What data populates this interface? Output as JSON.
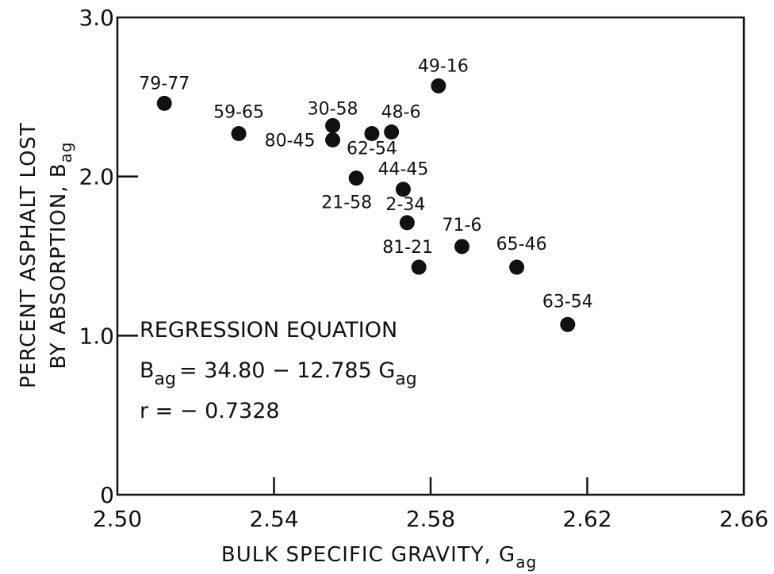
{
  "chart_data": {
    "type": "scatter",
    "xlabel": "BULK SPECIFIC GRAVITY, G",
    "xlabel_sub": "ag",
    "ylabel_line1": "PERCENT ASPHALT LOST",
    "ylabel_line2": "BY ABSORPTION, B",
    "ylabel_sub": "ag",
    "xlim": [
      2.5,
      2.66
    ],
    "ylim": [
      0,
      3.0
    ],
    "x_ticks": [
      2.5,
      2.54,
      2.58,
      2.62,
      2.66
    ],
    "x_tick_labels": [
      "2.50",
      "2.54",
      "2.58",
      "2.62",
      "2.66"
    ],
    "y_ticks": [
      0,
      1.0,
      2.0,
      3.0
    ],
    "y_tick_labels": [
      "0",
      "1.0",
      "2.0",
      "3.0"
    ],
    "grid": false,
    "points": [
      {
        "label": "79-77",
        "x": 2.512,
        "y": 2.46
      },
      {
        "label": "59-65",
        "x": 2.531,
        "y": 2.27
      },
      {
        "label": "30-58",
        "x": 2.555,
        "y": 2.32
      },
      {
        "label": "80-45",
        "x": 2.555,
        "y": 2.23
      },
      {
        "label": "62-54",
        "x": 2.565,
        "y": 2.27
      },
      {
        "label": "48-6",
        "x": 2.57,
        "y": 2.28
      },
      {
        "label": "49-16",
        "x": 2.582,
        "y": 2.57
      },
      {
        "label": "21-58",
        "x": 2.561,
        "y": 1.99
      },
      {
        "label": "44-45",
        "x": 2.573,
        "y": 1.92
      },
      {
        "label": "2-34",
        "x": 2.574,
        "y": 1.71
      },
      {
        "label": "71-6",
        "x": 2.588,
        "y": 1.56
      },
      {
        "label": "81-21",
        "x": 2.577,
        "y": 1.43
      },
      {
        "label": "65-46",
        "x": 2.602,
        "y": 1.43
      },
      {
        "label": "63-54",
        "x": 2.615,
        "y": 1.07
      }
    ],
    "annotation": {
      "title": "REGRESSION EQUATION",
      "eq_lhs": "B",
      "eq_lhs_sub": "ag",
      "eq_mid": "= 34.80 − 12.785 G",
      "eq_rhs_sub": "ag",
      "r_text": "r = − 0.7328"
    }
  }
}
